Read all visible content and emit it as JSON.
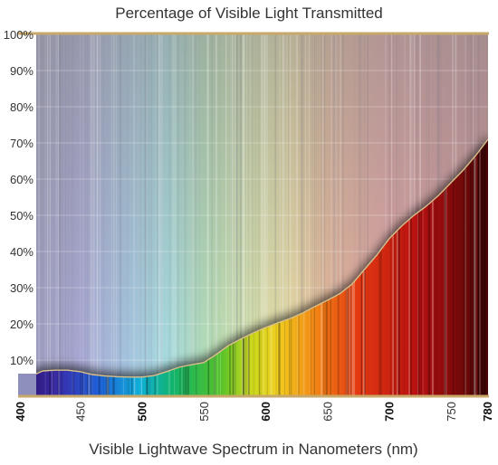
{
  "chart_data": {
    "type": "area",
    "title": "Percentage of Visible Light Transmitted",
    "xlabel": "Visible Lightwave Spectrum in Nanometers (nm)",
    "ylabel": "",
    "xlim": [
      400,
      780
    ],
    "ylim": [
      0,
      100
    ],
    "x_ticks": [
      "400",
      "450",
      "500",
      "550",
      "600",
      "650",
      "700",
      "750",
      "780"
    ],
    "x_ticks_bold": [
      "400",
      "500",
      "600",
      "700",
      "780"
    ],
    "y_ticks": [
      "10%",
      "20%",
      "30%",
      "40%",
      "50%",
      "60%",
      "70%",
      "80%",
      "90%",
      "100%"
    ],
    "grid": true,
    "legend": "none",
    "colors": {
      "frame": "#c8a96a",
      "curve": "#d7c08a",
      "grid": "#ffffff"
    },
    "series": [
      {
        "x": [
          400,
          405,
          410,
          420,
          430,
          440,
          450,
          460,
          470,
          480,
          490,
          500,
          510,
          520,
          530,
          540,
          550,
          560,
          570,
          580,
          590,
          600,
          610,
          620,
          630,
          640,
          650,
          660,
          670,
          680,
          690,
          700,
          710,
          720,
          730,
          740,
          750,
          760,
          770,
          780
        ],
        "values": [
          1.2,
          3.5,
          5.5,
          7.0,
          7.2,
          7.2,
          6.8,
          6.0,
          5.6,
          5.4,
          5.3,
          5.3,
          5.7,
          6.8,
          8.0,
          8.7,
          9.3,
          11.5,
          14.0,
          15.8,
          17.5,
          19.0,
          20.3,
          21.5,
          23.0,
          24.8,
          26.5,
          28.3,
          31.0,
          35.0,
          39.0,
          43.5,
          47.0,
          50.0,
          52.5,
          55.5,
          59.0,
          62.5,
          66.5,
          71.0
        ]
      }
    ]
  }
}
